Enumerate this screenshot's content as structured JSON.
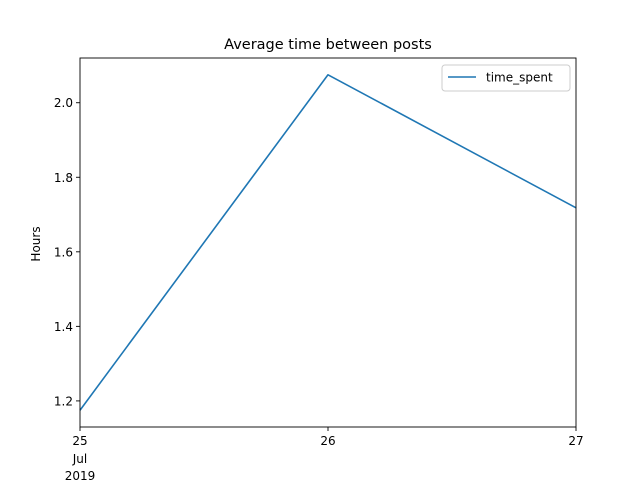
{
  "chart_data": {
    "type": "line",
    "title": "Average time between posts",
    "xlabel": "",
    "ylabel": "Hours",
    "x": [
      "2019-07-25",
      "2019-07-26",
      "2019-07-27"
    ],
    "x_ticks": [
      {
        "value": "2019-07-25",
        "label": "25",
        "sub1": "Jul",
        "sub2": "2019"
      },
      {
        "value": "2019-07-26",
        "label": "26",
        "sub1": "",
        "sub2": ""
      },
      {
        "value": "2019-07-27",
        "label": "27",
        "sub1": "",
        "sub2": ""
      }
    ],
    "series": [
      {
        "name": "time_spent",
        "color": "#1f77b4",
        "values": [
          1.175,
          2.075,
          1.718
        ]
      }
    ],
    "ylim": [
      1.13,
      2.12
    ],
    "yticks": [
      1.2,
      1.4,
      1.6,
      1.8,
      2.0
    ],
    "ytick_labels": [
      "1.2",
      "1.4",
      "1.6",
      "1.8",
      "2.0"
    ],
    "grid": false,
    "legend_position": "top-right"
  }
}
